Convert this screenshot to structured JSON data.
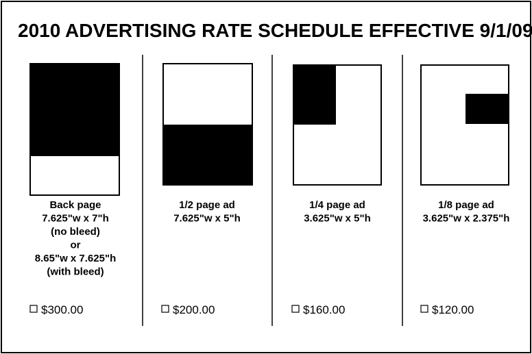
{
  "header": {
    "title": "2010 ADVERTISING RATE SCHEDULE EFFECTIVE 9/1/09"
  },
  "columns": [
    {
      "lines": [
        "Back page",
        "7.625\"w x 7\"h",
        "(no bleed)",
        "or",
        "8.65\"w x 7.625\"h",
        "(with bleed)"
      ],
      "price": "$300.00"
    },
    {
      "lines": [
        "1/2 page ad",
        "7.625\"w x 5\"h"
      ],
      "price": "$200.00"
    },
    {
      "lines": [
        "1/4 page ad",
        "3.625\"w x 5\"h"
      ],
      "price": "$160.00"
    },
    {
      "lines": [
        "1/8 page ad",
        "3.625\"w x 2.375\"h"
      ],
      "price": "$120.00"
    }
  ]
}
